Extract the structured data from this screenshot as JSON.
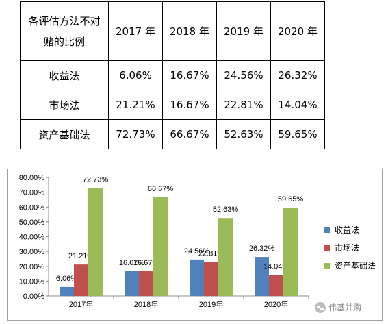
{
  "table": {
    "header_method_line1": "各评估方法不对",
    "header_method_line2": "赌的比例",
    "years": [
      "2017 年",
      "2018 年",
      "2019 年",
      "2020 年"
    ],
    "rows": [
      {
        "method": "收益法",
        "values": [
          "6.06%",
          "16.67%",
          "24.56%",
          "26.32%"
        ]
      },
      {
        "method": "市场法",
        "values": [
          "21.21%",
          "16.67%",
          "22.81%",
          "14.04%"
        ]
      },
      {
        "method": "资产基础法",
        "values": [
          "72.73%",
          "66.67%",
          "52.63%",
          "59.65%"
        ]
      }
    ]
  },
  "chart_data": {
    "type": "bar",
    "categories": [
      "2017年",
      "2018年",
      "2019年",
      "2020年"
    ],
    "series": [
      {
        "name": "收益法",
        "values": [
          6.06,
          16.67,
          24.56,
          26.32
        ],
        "color": "#4f81bd"
      },
      {
        "name": "市场法",
        "values": [
          21.21,
          16.67,
          22.81,
          14.04
        ],
        "color": "#c0504d"
      },
      {
        "name": "资产基础法",
        "values": [
          72.73,
          66.67,
          52.63,
          59.65
        ],
        "color": "#9bbb59"
      }
    ],
    "ylim": [
      0,
      80
    ],
    "yticks": [
      "0.00%",
      "10.00%",
      "20.00%",
      "30.00%",
      "40.00%",
      "50.00%",
      "60.00%",
      "70.00%",
      "80.00%"
    ],
    "data_labels": true,
    "legend_position": "right",
    "grid": false
  },
  "watermark": {
    "text": "伟基并购",
    "icon": "wechat-icon"
  }
}
